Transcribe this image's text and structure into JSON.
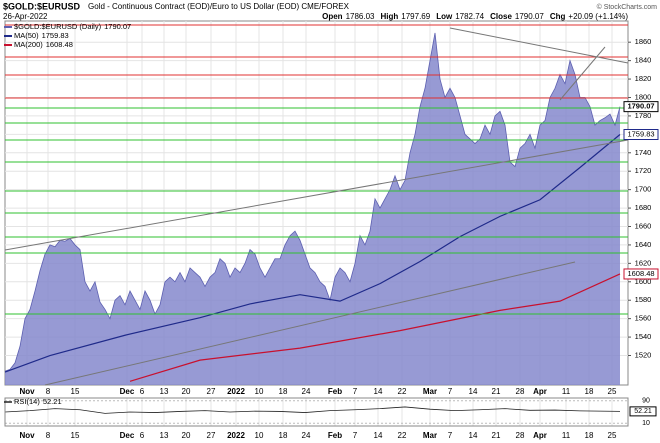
{
  "chart_data": {
    "type": "area",
    "title": "$GOLD:$EURUSD",
    "subtitle": "Gold - Continuous Contract (EOD)/Euro to US Dollar (EOD) CME/FOREX",
    "date": "26-Apr-2022",
    "source": "© StockCharts.com",
    "quote": [
      {
        "label": "Open",
        "value": 1786.03
      },
      {
        "label": "High",
        "value": 1797.69
      },
      {
        "label": "Low",
        "value": 1782.74
      },
      {
        "label": "Close",
        "value": 1790.07
      },
      {
        "label": "Chg",
        "value": "+20.09 (+1.14%)"
      }
    ],
    "xlim": [
      0,
      124.6
    ],
    "xticks": [
      {
        "value": 4.4,
        "label": "Nov"
      },
      {
        "value": 8.6,
        "label": "8"
      },
      {
        "value": 14,
        "label": "15"
      },
      {
        "value": 24.4,
        "label": "Dec"
      },
      {
        "value": 27.4,
        "label": "6"
      },
      {
        "value": 31.8,
        "label": "13"
      },
      {
        "value": 36.2,
        "label": "20"
      },
      {
        "value": 41.2,
        "label": "27"
      },
      {
        "value": 46.2,
        "label": "2022"
      },
      {
        "value": 50.8,
        "label": "10"
      },
      {
        "value": 55.6,
        "label": "18"
      },
      {
        "value": 60.2,
        "label": "24"
      },
      {
        "value": 66,
        "label": "Feb"
      },
      {
        "value": 70,
        "label": "7"
      },
      {
        "value": 74.6,
        "label": "14"
      },
      {
        "value": 79.4,
        "label": "22"
      },
      {
        "value": 85,
        "label": "Mar"
      },
      {
        "value": 89,
        "label": "7"
      },
      {
        "value": 93.6,
        "label": "14"
      },
      {
        "value": 98.2,
        "label": "21"
      },
      {
        "value": 103,
        "label": "28"
      },
      {
        "value": 107,
        "label": "Apr"
      },
      {
        "value": 112.2,
        "label": "11"
      },
      {
        "value": 116.8,
        "label": "18"
      },
      {
        "value": 121.4,
        "label": "25"
      }
    ],
    "ylim": [
      1488,
      1883
    ],
    "yticks": [
      1520,
      1540,
      1560,
      1580,
      1600,
      1620,
      1640,
      1660,
      1680,
      1700,
      1720,
      1740,
      1760,
      1780,
      1800,
      1820,
      1840,
      1860
    ],
    "grid": true,
    "series": [
      {
        "name": "$GOLD:$EURUSD (Daily)",
        "color": "#8588cc",
        "values": [
          1503,
          1505,
          1512,
          1530,
          1560,
          1570,
          1590,
          1612,
          1630,
          1640,
          1638,
          1645,
          1644,
          1647,
          1640,
          1635,
          1600,
          1590,
          1600,
          1578,
          1570,
          1560,
          1580,
          1585,
          1575,
          1590,
          1580,
          1570,
          1590,
          1580,
          1565,
          1575,
          1600,
          1605,
          1600,
          1610,
          1600,
          1615,
          1610,
          1605,
          1595,
          1605,
          1610,
          1625,
          1620,
          1605,
          1615,
          1610,
          1620,
          1635,
          1630,
          1615,
          1605,
          1615,
          1625,
          1625,
          1640,
          1650,
          1655,
          1645,
          1630,
          1615,
          1610,
          1600,
          1595,
          1580,
          1605,
          1615,
          1610,
          1600,
          1620,
          1650,
          1640,
          1655,
          1690,
          1680,
          1690,
          1700,
          1715,
          1700,
          1710,
          1740,
          1760,
          1790,
          1810,
          1840,
          1870,
          1820,
          1800,
          1810,
          1800,
          1780,
          1760,
          1755,
          1750,
          1755,
          1770,
          1760,
          1780,
          1785,
          1770,
          1730,
          1725,
          1745,
          1750,
          1760,
          1745,
          1770,
          1775,
          1800,
          1810,
          1825,
          1815,
          1840,
          1825,
          1800,
          1800,
          1790,
          1770,
          1775,
          1778,
          1782,
          1770,
          1790.07
        ]
      },
      {
        "name": "MA(50)",
        "color": "#1f2a8a",
        "x": [
          0,
          9,
          24,
          39,
          49,
          59,
          67,
          75,
          83,
          91,
          99,
          107,
          115,
          123
        ],
        "values": [
          1502,
          1520,
          1542,
          1561,
          1576,
          1586,
          1579,
          1598,
          1622,
          1649,
          1671,
          1689,
          1724,
          1759.83
        ]
      },
      {
        "name": "MA(200)",
        "color": "#c8102e",
        "x": [
          25,
          39,
          59,
          79,
          99,
          111,
          123
        ],
        "values": [
          1492,
          1515,
          1528,
          1547,
          1569,
          1579,
          1608.48
        ]
      }
    ],
    "rsi": {
      "name": "RSI(14)",
      "color": "#222222",
      "ylim": [
        0,
        100
      ],
      "yticks": [
        10,
        90
      ],
      "x": [
        0,
        5,
        10,
        15,
        20,
        25,
        30,
        35,
        40,
        45,
        50,
        55,
        60,
        65,
        70,
        75,
        80,
        85,
        90,
        95,
        100,
        105,
        110,
        115,
        123
      ],
      "values": [
        50,
        55,
        62,
        58,
        45,
        50,
        48,
        52,
        55,
        50,
        53,
        52,
        48,
        55,
        58,
        62,
        68,
        60,
        55,
        58,
        62,
        56,
        57,
        54,
        52.21
      ]
    }
  }
}
